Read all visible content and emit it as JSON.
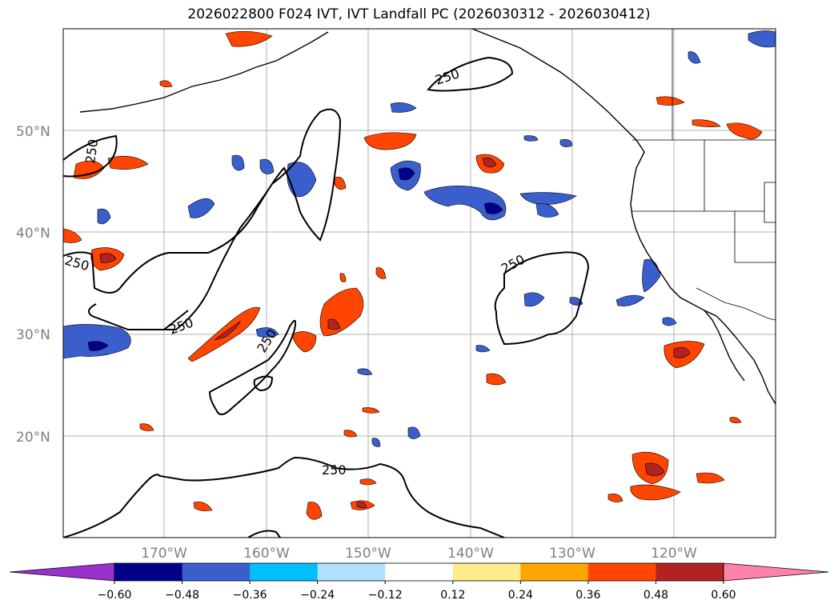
{
  "title": "2026022800 F024 IVT, IVT Landfall PC (2026030312 - 2026030412)",
  "latitude_labels": [
    "50°N",
    "40°N",
    "30°N",
    "20°N"
  ],
  "longitude_labels": [
    "170°W",
    "160°W",
    "150°W",
    "140°W",
    "130°W",
    "120°W"
  ],
  "contour_level_label": "250",
  "colorbar": {
    "ticks": [
      "−0.60",
      "−0.48",
      "−0.36",
      "−0.24",
      "−0.12",
      "0.12",
      "0.24",
      "0.36",
      "0.48",
      "0.60"
    ],
    "colors": [
      "#9932CC",
      "#00008B",
      "#3A5FCD",
      "#00BFFF",
      "#B0E2FF",
      "#FFFFFF",
      "#FFEC8B",
      "#FFA500",
      "#FF4500",
      "#B22222",
      "#FF82AB"
    ]
  },
  "palette": {
    "neg_strong": "#00008B",
    "neg_mid": "#3A5FCD",
    "neg_light": "#00BFFF",
    "neg_pale": "#B0E2FF",
    "pos_pale": "#FFEC8B",
    "pos_light": "#FFA500",
    "pos_mid": "#FF4500",
    "pos_strong": "#B22222",
    "grid": "#b0b0b0",
    "axis_text": "#808080"
  }
}
